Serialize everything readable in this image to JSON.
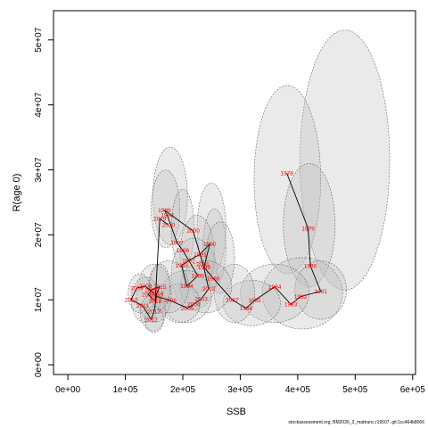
{
  "footer_text": "stockassessment.org, BM2026_3_mattrunc.r19507, git:1cc464b8066",
  "colors": {
    "ellipse_fill": "#bfbfbf",
    "ellipse_stroke": "#666666",
    "line": "#000000",
    "label": "#ff0000",
    "axis": "#000000"
  },
  "chart_data": {
    "type": "scatter",
    "xlabel": "SSB",
    "ylabel": "R(age 0)",
    "xlim": [
      -25000,
      605000
    ],
    "ylim": [
      -1500000,
      54500000
    ],
    "xticks": [
      {
        "v": 0,
        "label": "0e+00"
      },
      {
        "v": 100000,
        "label": "1e+05"
      },
      {
        "v": 200000,
        "label": "2e+05"
      },
      {
        "v": 300000,
        "label": "3e+05"
      },
      {
        "v": 400000,
        "label": "4e+05"
      },
      {
        "v": 500000,
        "label": "5e+05"
      },
      {
        "v": 600000,
        "label": "6e+05"
      }
    ],
    "yticks": [
      {
        "v": 0,
        "label": "0e+00"
      },
      {
        "v": 10000000,
        "label": "1e+07"
      },
      {
        "v": 20000000,
        "label": "2e+07"
      },
      {
        "v": 30000000,
        "label": "3e+07"
      },
      {
        "v": 40000000,
        "label": "4e+07"
      },
      {
        "v": 50000000,
        "label": "5e+07"
      }
    ],
    "grid": false,
    "points": [
      {
        "year": "1978",
        "x": 381000,
        "y": 29500000
      },
      {
        "year": "1979",
        "x": 418000,
        "y": 21000000
      },
      {
        "year": "1980",
        "x": 422000,
        "y": 15200000
      },
      {
        "year": "1981",
        "x": 440000,
        "y": 11300000
      },
      {
        "year": "1982",
        "x": 405000,
        "y": 10500000
      },
      {
        "year": "1983",
        "x": 388000,
        "y": 9300000
      },
      {
        "year": "1984",
        "x": 360000,
        "y": 12000000
      },
      {
        "year": "1985",
        "x": 325000,
        "y": 9900000
      },
      {
        "year": "1986",
        "x": 310000,
        "y": 8700000
      },
      {
        "year": "1987",
        "x": 286000,
        "y": 10000000
      },
      {
        "year": "1988",
        "x": 253000,
        "y": 13300000
      },
      {
        "year": "1989",
        "x": 237000,
        "y": 15000000
      },
      {
        "year": "1990",
        "x": 247000,
        "y": 18600000
      },
      {
        "year": "1991",
        "x": 230000,
        "y": 17000000
      },
      {
        "year": "1992",
        "x": 210000,
        "y": 16000000
      },
      {
        "year": "1993",
        "x": 198000,
        "y": 15300000
      },
      {
        "year": "1994",
        "x": 207000,
        "y": 12100000
      },
      {
        "year": "1995",
        "x": 226000,
        "y": 13700000
      },
      {
        "year": "1996",
        "x": 200000,
        "y": 17600000
      },
      {
        "year": "1997",
        "x": 190000,
        "y": 18800000
      },
      {
        "year": "1998",
        "x": 173000,
        "y": 23000000
      },
      {
        "year": "1999",
        "x": 168000,
        "y": 23800000
      },
      {
        "year": "2000",
        "x": 218000,
        "y": 20600000
      },
      {
        "year": "2001",
        "x": 235000,
        "y": 15500000
      },
      {
        "year": "2002",
        "x": 245000,
        "y": 11700000
      },
      {
        "year": "2003",
        "x": 232000,
        "y": 10100000
      },
      {
        "year": "2004",
        "x": 219000,
        "y": 9300000
      },
      {
        "year": "2005",
        "x": 208000,
        "y": 8700000
      },
      {
        "year": "2006",
        "x": 178000,
        "y": 9900000
      },
      {
        "year": "2007",
        "x": 155000,
        "y": 10500000
      },
      {
        "year": "2008",
        "x": 135000,
        "y": 12100000
      },
      {
        "year": "2009",
        "x": 120000,
        "y": 11800000
      },
      {
        "year": "2010",
        "x": 110000,
        "y": 10000000
      },
      {
        "year": "2011",
        "x": 130000,
        "y": 9100000
      },
      {
        "year": "2012",
        "x": 145000,
        "y": 7000000
      },
      {
        "year": "2013",
        "x": 150000,
        "y": 8200000
      },
      {
        "year": "2014",
        "x": 155000,
        "y": 11000000
      },
      {
        "year": "2015",
        "x": 160000,
        "y": 12000000
      },
      {
        "year": "2016",
        "x": 145000,
        "y": 11500000
      },
      {
        "year": "2017",
        "x": 140000,
        "y": 10800000
      },
      {
        "year": "2018",
        "x": 152000,
        "y": 9800000
      },
      {
        "year": "2019",
        "x": 160000,
        "y": 22500000
      },
      {
        "year": "2020",
        "x": 175000,
        "y": 21500000
      }
    ],
    "ellipses": [
      {
        "cx": 482000,
        "cy": 31500000,
        "rx": 78000,
        "ry": 20000000
      },
      {
        "cx": 382000,
        "cy": 28500000,
        "rx": 58000,
        "ry": 14500000
      },
      {
        "cx": 420000,
        "cy": 21500000,
        "rx": 45000,
        "ry": 9500000
      },
      {
        "cx": 408000,
        "cy": 11000000,
        "rx": 70000,
        "ry": 5500000
      },
      {
        "cx": 440000,
        "cy": 11500000,
        "rx": 45000,
        "ry": 4500000
      },
      {
        "cx": 360000,
        "cy": 11000000,
        "rx": 60000,
        "ry": 4500000
      },
      {
        "cx": 320000,
        "cy": 9500000,
        "rx": 50000,
        "ry": 3500000
      },
      {
        "cx": 290000,
        "cy": 11000000,
        "rx": 35000,
        "ry": 4500000
      },
      {
        "cx": 178000,
        "cy": 26000000,
        "rx": 30000,
        "ry": 7500000
      },
      {
        "cx": 170000,
        "cy": 24000000,
        "rx": 25000,
        "ry": 6000000
      },
      {
        "cx": 200000,
        "cy": 21000000,
        "rx": 20000,
        "ry": 6000000
      },
      {
        "cx": 250000,
        "cy": 21000000,
        "rx": 25000,
        "ry": 7000000
      },
      {
        "cx": 255000,
        "cy": 18000000,
        "rx": 20000,
        "ry": 6000000
      },
      {
        "cx": 225000,
        "cy": 17000000,
        "rx": 30000,
        "ry": 6000000
      },
      {
        "cx": 220000,
        "cy": 14000000,
        "rx": 40000,
        "ry": 5500000
      },
      {
        "cx": 265000,
        "cy": 16500000,
        "rx": 25000,
        "ry": 5500000
      },
      {
        "cx": 240000,
        "cy": 12000000,
        "rx": 45000,
        "ry": 4000000
      },
      {
        "cx": 205000,
        "cy": 10500000,
        "rx": 45000,
        "ry": 4000000
      },
      {
        "cx": 195000,
        "cy": 9500000,
        "rx": 35000,
        "ry": 3000000
      },
      {
        "cx": 175000,
        "cy": 12000000,
        "rx": 35000,
        "ry": 4000000
      },
      {
        "cx": 150000,
        "cy": 11000000,
        "rx": 30000,
        "ry": 4500000
      },
      {
        "cx": 135000,
        "cy": 10000000,
        "rx": 25000,
        "ry": 3500000
      },
      {
        "cx": 125000,
        "cy": 11000000,
        "rx": 20000,
        "ry": 3000000
      },
      {
        "cx": 148000,
        "cy": 8000000,
        "rx": 22000,
        "ry": 2800000
      },
      {
        "cx": 150000,
        "cy": 7000000,
        "rx": 16000,
        "ry": 2000000
      },
      {
        "cx": 160000,
        "cy": 12000000,
        "rx": 18000,
        "ry": 3500000
      }
    ]
  }
}
